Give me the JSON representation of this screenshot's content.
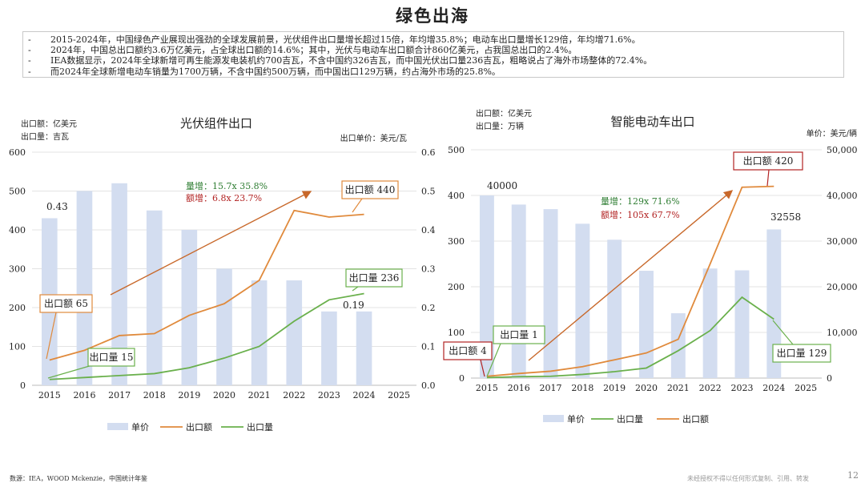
{
  "title": "绿色出海",
  "bullets": [
    "2015-2024年，中国绿色产业展现出强劲的全球发展前景，光伏组件出口量增长超过15倍，年均增35.8%；电动车出口量增长129倍，年均增71.6%。",
    "2024年，中国总出口额约3.6万亿美元，占全球出口额的14.6%；其中，光伏与电动车出口额合计860亿美元，占我国总出口的2.4%。",
    "IEA数据显示，2024年全球新增可再生能源发电装机约700吉瓦，不含中国约326吉瓦，而中国光伏出口量236吉瓦，粗略说占了海外市场整体的72.4%。",
    "而2024年全球新增电动车销量为1700万辆，不含中国约500万辆，而中国出口129万辆，约占海外市场的25.8%。"
  ],
  "bullet_marker": "-",
  "footer": {
    "source": "数源：IEA，WOOD Mckenzie，中国统计年鉴",
    "notice": "未经授权不得以任何形式复制、引用、转发",
    "page": "12"
  },
  "colors": {
    "bar": "#d3ddf0",
    "amount": "#e08a3c",
    "volume": "#6ab04c",
    "arrow": "#c8682a",
    "amount_label": "#b22222",
    "volume_label": "#2e7d32"
  },
  "chart_data": [
    {
      "type": "bar+line",
      "title": "光伏组件出口",
      "left_unit_lines": [
        "出口额：亿美元",
        "出口量：吉瓦"
      ],
      "right_unit": "出口单价：美元/瓦",
      "categories": [
        "2015",
        "2016",
        "2017",
        "2018",
        "2019",
        "2020",
        "2021",
        "2022",
        "2023",
        "2024",
        "2025"
      ],
      "ylim_left": [
        0,
        600
      ],
      "yticks_left": [
        "0",
        "100",
        "200",
        "300",
        "400",
        "500",
        "600"
      ],
      "ylim_right": [
        0,
        0.6
      ],
      "yticks_right": [
        "0.0",
        "0.1",
        "0.2",
        "0.3",
        "0.4",
        "0.5",
        "0.6"
      ],
      "series": [
        {
          "name": "单价",
          "kind": "bar",
          "axis": "right",
          "values": [
            0.43,
            0.5,
            0.52,
            0.45,
            0.4,
            0.3,
            0.27,
            0.27,
            0.19,
            0.19,
            null
          ]
        },
        {
          "name": "出口额",
          "kind": "line",
          "axis": "left",
          "values": [
            65,
            90,
            128,
            133,
            180,
            210,
            270,
            450,
            433,
            440,
            null
          ]
        },
        {
          "name": "出口量",
          "kind": "line",
          "axis": "left",
          "values": [
            15,
            20,
            25,
            30,
            45,
            70,
            100,
            165,
            220,
            236,
            null
          ]
        }
      ],
      "value_labels": [
        {
          "text": "0.43"
        },
        {
          "text": "0.19"
        }
      ],
      "callouts": [
        {
          "text": "出口额 65"
        },
        {
          "text": "出口量 15"
        },
        {
          "text": "出口额 440"
        },
        {
          "text": "出口量 236"
        }
      ],
      "growth_note": {
        "volume": "量增：15.7x  35.8%",
        "amount": "额增：6.8x   23.7%"
      },
      "legend": [
        "单价",
        "出口额",
        "出口量"
      ]
    },
    {
      "type": "bar+line",
      "title": "智能电动车出口",
      "left_unit_lines": [
        "出口额：亿美元",
        "出口量：万辆"
      ],
      "right_unit": "单价：美元/辆",
      "categories": [
        "2015",
        "2016",
        "2017",
        "2018",
        "2019",
        "2020",
        "2021",
        "2022",
        "2023",
        "2024",
        "2025"
      ],
      "ylim_left": [
        0,
        500
      ],
      "yticks_left": [
        "0",
        "100",
        "200",
        "300",
        "400",
        "500"
      ],
      "ylim_right": [
        0,
        50000
      ],
      "yticks_right": [
        "0",
        "10,000",
        "20,000",
        "30,000",
        "40,000",
        "50,000"
      ],
      "series": [
        {
          "name": "单价",
          "kind": "bar",
          "axis": "right",
          "values": [
            40000,
            38000,
            37000,
            33800,
            30300,
            23500,
            14200,
            24000,
            23600,
            32558,
            null
          ]
        },
        {
          "name": "出口量",
          "kind": "line",
          "axis": "left",
          "values": [
            1,
            3,
            4,
            8,
            14,
            22,
            60,
            104,
            177,
            129,
            null
          ]
        },
        {
          "name": "出口额",
          "kind": "line",
          "axis": "left",
          "values": [
            4,
            10,
            15,
            25,
            40,
            55,
            85,
            250,
            418,
            420,
            null
          ]
        }
      ],
      "value_labels": [
        {
          "text": "40000"
        },
        {
          "text": "32558"
        }
      ],
      "callouts": [
        {
          "text": "出口额 4"
        },
        {
          "text": "出口量 1"
        },
        {
          "text": "出口额 420"
        },
        {
          "text": "出口量 129"
        }
      ],
      "growth_note": {
        "volume": "量增：129x  71.6%",
        "amount": "额增：105x  67.7%"
      },
      "legend": [
        "单价",
        "出口量",
        "出口额"
      ]
    }
  ]
}
